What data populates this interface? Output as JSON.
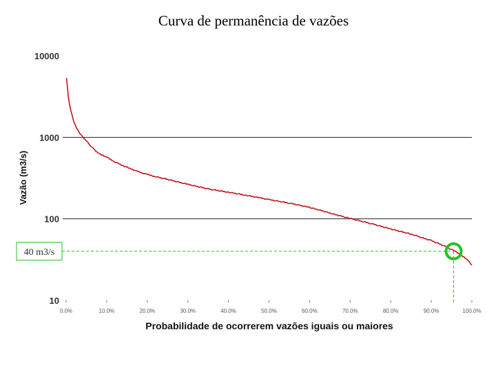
{
  "chart_data": {
    "type": "line",
    "title": "Curva de permanência de vazões",
    "xlabel": "Probabilidade de ocorrerem vazões iguais ou maiores",
    "ylabel": "Vazão (m3/s)",
    "y_scale": "log",
    "ylim": [
      10,
      10000
    ],
    "xlim": [
      0,
      100
    ],
    "yticks": [
      {
        "value": 10,
        "label": "10"
      },
      {
        "value": 100,
        "label": "100"
      },
      {
        "value": 1000,
        "label": "1000"
      },
      {
        "value": 10000,
        "label": "10000"
      }
    ],
    "xticks": [
      {
        "value": 0,
        "label": "0.0%"
      },
      {
        "value": 10,
        "label": "10.0%"
      },
      {
        "value": 20,
        "label": "20.0%"
      },
      {
        "value": 30,
        "label": "30.0%"
      },
      {
        "value": 40,
        "label": "40.0%"
      },
      {
        "value": 50,
        "label": "50.0%"
      },
      {
        "value": 60,
        "label": "60.0%"
      },
      {
        "value": 70,
        "label": "70.0%"
      },
      {
        "value": 80,
        "label": "80.0%"
      },
      {
        "value": 90,
        "label": "90.0%"
      },
      {
        "value": 100,
        "label": "100.0%"
      }
    ],
    "gridlines_y": [
      100,
      1000
    ],
    "series": [
      {
        "color": "#c0141c",
        "x": [
          0.1,
          0.3,
          0.5,
          0.8,
          1.2,
          1.6,
          2,
          2.5,
          3,
          3.5,
          4,
          5,
          6,
          7,
          8,
          9,
          10,
          12,
          14,
          16,
          18,
          20,
          22,
          25,
          28,
          30,
          33,
          36,
          40,
          44,
          48,
          50,
          55,
          60,
          63,
          66,
          70,
          75,
          80,
          85,
          90,
          93,
          94.5,
          96,
          97,
          98,
          99,
          100
        ],
        "y": [
          5300,
          4200,
          3300,
          2600,
          2100,
          1750,
          1500,
          1330,
          1200,
          1100,
          1020,
          900,
          790,
          700,
          640,
          600,
          570,
          500,
          450,
          410,
          375,
          350,
          330,
          305,
          280,
          265,
          245,
          228,
          212,
          196,
          180,
          172,
          156,
          138,
          126,
          114,
          101,
          88,
          75,
          65,
          54,
          47,
          43,
          40,
          37,
          34,
          31,
          27
        ]
      }
    ],
    "annotation": {
      "label": "40 m3/s",
      "value_y": 40,
      "value_x": 95.5,
      "color": "#2ab82a"
    }
  }
}
